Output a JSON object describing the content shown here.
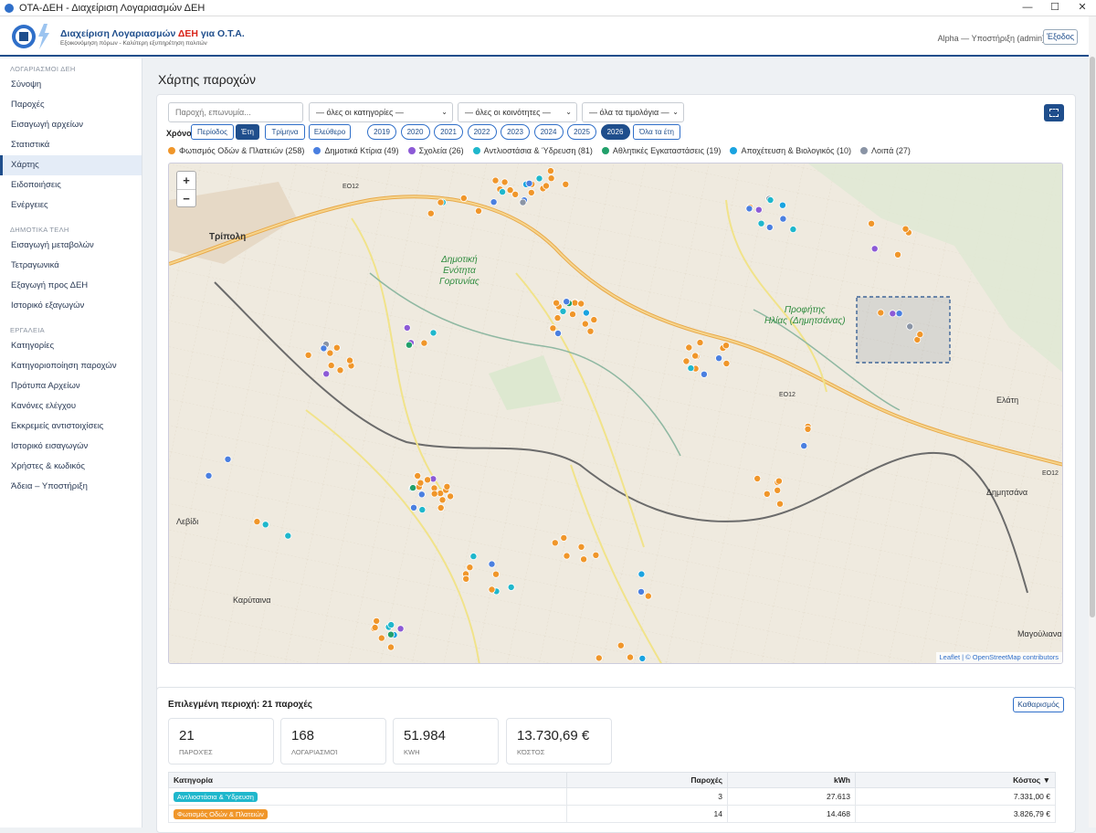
{
  "window": {
    "title": "ΟΤΑ-ΔΕΗ - Διαχείριση Λογαριασμών ΔΕΗ",
    "minimize": "—",
    "maximize": "☐",
    "close": "✕"
  },
  "header": {
    "title_prefix": "Διαχείριση Λογαριασμών ",
    "title_red": "ΔΕΗ",
    "title_suffix": " για Ο.Τ.Α.",
    "subtitle": "Εξοικονόμηση πόρων - Καλύτερη εξυπηρέτηση πολιτών",
    "user": "Alpha — Υποστήριξη (admin)",
    "exit": "Έξοδος"
  },
  "sidebar": {
    "sections": [
      {
        "title": "ΛΟΓΑΡΙΑΣΜΟΙ ΔΕΗ",
        "items": [
          {
            "label": "Σύνοψη"
          },
          {
            "label": "Παροχές"
          },
          {
            "label": "Εισαγωγή αρχείων"
          },
          {
            "label": "Στατιστικά"
          },
          {
            "label": "Χάρτης",
            "active": true
          },
          {
            "label": "Ειδοποιήσεις"
          },
          {
            "label": "Ενέργειες"
          }
        ]
      },
      {
        "title": "ΔΗΜΟΤΙΚΑ ΤΕΛΗ",
        "items": [
          {
            "label": "Εισαγωγή μεταβολών"
          },
          {
            "label": "Τετραγωνικά"
          },
          {
            "label": "Εξαγωγή προς ΔΕΗ"
          },
          {
            "label": "Ιστορικό εξαγωγών"
          }
        ]
      },
      {
        "title": "ΕΡΓΑΛΕΙΑ",
        "items": [
          {
            "label": "Κατηγορίες"
          },
          {
            "label": "Κατηγοριοποίηση παροχών"
          },
          {
            "label": "Πρότυπα Αρχείων"
          },
          {
            "label": "Κανόνες ελέγχου"
          },
          {
            "label": "Εκκρεμείς αντιστοιχίσεις"
          },
          {
            "label": "Ιστορικό εισαγωγών"
          },
          {
            "label": "Χρήστες & κωδικός"
          },
          {
            "label": "Άδεια – Υποστήριξη"
          }
        ]
      }
    ]
  },
  "page": {
    "title": "Χάρτης παροχών"
  },
  "filters": {
    "search_placeholder": "Παροχή, επωνυμία...",
    "category": "— όλες οι κατηγορίες —",
    "community": "— όλες οι κοινότητες —",
    "invoice": "— όλα τα τιμολόγια —",
    "year_label": "Χρόνος:",
    "modes": [
      "Περίοδος",
      "Έτη",
      "Τρίμηνα",
      "Ελεύθερο"
    ],
    "active_mode": "Έτη",
    "years": [
      "2019",
      "2020",
      "2021",
      "2022",
      "2023",
      "2024",
      "2025",
      "2026"
    ],
    "active_year": "2026",
    "all_years": "Όλα τα έτη"
  },
  "legend": [
    {
      "label": "Φωτισμός Οδών & Πλατειών (258)",
      "color": "#f0962a"
    },
    {
      "label": "Δημοτικά Κτίρια (49)",
      "color": "#4a7fe0"
    },
    {
      "label": "Σχολεία (26)",
      "color": "#8c5ad6"
    },
    {
      "label": "Αντλιοστάσια & Ύδρευση (81)",
      "color": "#1fb7cc"
    },
    {
      "label": "Αθλητικές Εγκαταστάσεις (19)",
      "color": "#22a06b"
    },
    {
      "label": "Αποχέτευση & Βιολογικός (10)",
      "color": "#1aa3e0"
    },
    {
      "label": "Λοιπά (27)",
      "color": "#8a94a5"
    }
  ],
  "map": {
    "zoom_in": "+",
    "zoom_out": "−",
    "attribution_link": "Leaflet",
    "attribution_rest": " | © OpenStreetMap contributors",
    "labels": {
      "tripoli": "Τρίπολη",
      "road1": "ΕΟ12",
      "road2": "ΕΟ12",
      "road3": "ΕΟ12",
      "gortynia": "Δημοτική\nΕνότητα\nΓορτυνίας",
      "profitis": "Προφήτης\nΗλίας (Δημητσάνας)",
      "elati": "Ελάτη",
      "dimitsana": "Δημητσάνα",
      "levidi": "Λεβίδι",
      "karytaina": "Καρύταινα",
      "magoulia": "Μαγούλιανα"
    }
  },
  "selection": {
    "title": "Επιλεγμένη περιοχή: 21 παροχές",
    "clear": "Καθαρισμός",
    "stats": [
      {
        "value": "21",
        "label": "Παροχές"
      },
      {
        "value": "168",
        "label": "Λογαριασμοί"
      },
      {
        "value": "51.984",
        "label": "kWh"
      },
      {
        "value": "13.730,69 €",
        "label": "Κόστος"
      }
    ],
    "table": {
      "headers": [
        "Κατηγορία",
        "Παροχές",
        "kWh",
        "Κόστος ▼"
      ],
      "rows": [
        {
          "category": "Αντλιοστάσια & Ύδρευση",
          "color": "#1fb7cc",
          "count": "3",
          "kwh": "27.613",
          "cost": "7.331,00 €"
        },
        {
          "category": "Φωτισμός Οδών & Πλατειών",
          "color": "#f0962a",
          "count": "14",
          "kwh": "14.468",
          "cost": "3.826,79 €"
        }
      ]
    }
  }
}
